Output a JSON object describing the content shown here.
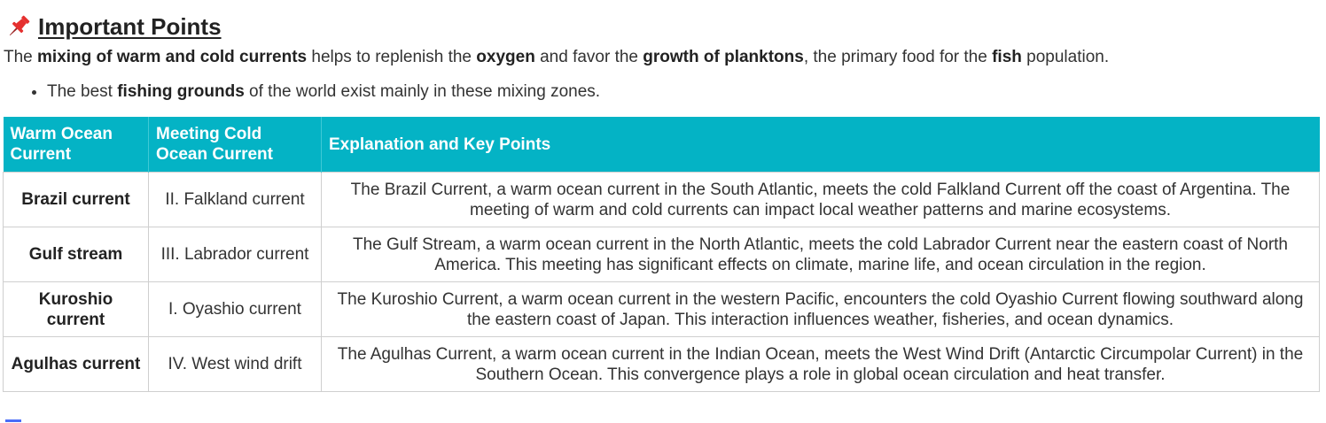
{
  "heading": {
    "icon": "pushpin-icon",
    "icon_color": "#e5302f",
    "title": "Important Points"
  },
  "intro": {
    "t1": "The ",
    "b1": "mixing of warm and cold currents",
    "t2": " helps to replenish the ",
    "b2": "oxygen",
    "t3": " and favor the ",
    "b3": "growth of planktons",
    "t4": ", the primary food for the ",
    "b4": "fish",
    "t5": " population."
  },
  "bullet": {
    "t1": "The best ",
    "b1": "fishing grounds",
    "t2": " of the world exist mainly in these mixing zones."
  },
  "table": {
    "header_color": "#04b3c5",
    "headers": {
      "warm": "Warm Ocean Current",
      "cold": "Meeting Cold Ocean Current",
      "explanation": "Explanation and Key Points"
    },
    "rows": [
      {
        "warm": "Brazil current",
        "cold": "II. Falkland current",
        "explanation": "The Brazil Current, a warm ocean current in the South Atlantic, meets the cold Falkland Current off the coast of Argentina. The meeting of warm and cold currents can impact local weather patterns and marine ecosystems."
      },
      {
        "warm": "Gulf stream",
        "cold": "III. Labrador current",
        "explanation": "The Gulf Stream, a warm ocean current in the North Atlantic, meets the cold Labrador Current near the eastern coast of North America. This meeting has significant effects on climate, marine life, and ocean circulation in the region."
      },
      {
        "warm": "Kuroshio current",
        "cold": "I. Oyashio current",
        "explanation": "The Kuroshio Current, a warm ocean current in the western Pacific, encounters the cold Oyashio Current flowing southward along the eastern coast of Japan. This interaction influences weather, fisheries, and ocean dynamics."
      },
      {
        "warm": "Agulhas current",
        "cold": "IV. West wind drift",
        "explanation": "The Agulhas Current, a warm ocean current in the Indian Ocean, meets the West Wind Drift (Antarctic Circumpolar Current) in the Southern Ocean. This convergence plays a role in global ocean circulation and heat transfer."
      }
    ]
  }
}
